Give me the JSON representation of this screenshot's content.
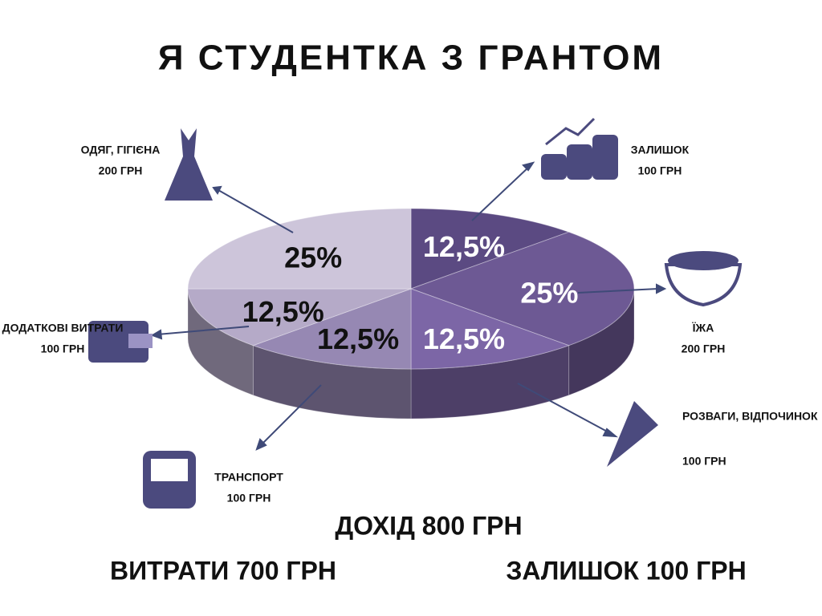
{
  "chart_data": {
    "type": "pie",
    "title": "Я СТУДЕНТКА З ГРАНТОМ",
    "categories": [
      "ЗАЛИШОК",
      "ЇЖА",
      "РОЗВАГИ, ВІДПОЧИНОК",
      "ТРАНСПОРТ",
      "ДОДАТКОВІ ВИТРАТИ",
      "ОДЯГ, ГІГІЄНА"
    ],
    "amounts": [
      "100 ГРН",
      "200 ГРН",
      "100 ГРН",
      "100 ГРН",
      "100 ГРН",
      "200 ГРН"
    ],
    "values": [
      12.5,
      25,
      12.5,
      12.5,
      12.5,
      25
    ],
    "value_labels": [
      "12,5%",
      "25%",
      "12,5%",
      "12,5%",
      "12,5%",
      "25%"
    ],
    "colors": [
      "#5b4a82",
      "#6d5994",
      "#7c66a6",
      "#9688b3",
      "#b5aac8",
      "#cdc5da"
    ],
    "annotations": [
      "ДОХІД 800 ГРН",
      "ВИТРАТИ 700 ГРН",
      "ЗАЛИШОК 100 ГРН"
    ]
  }
}
